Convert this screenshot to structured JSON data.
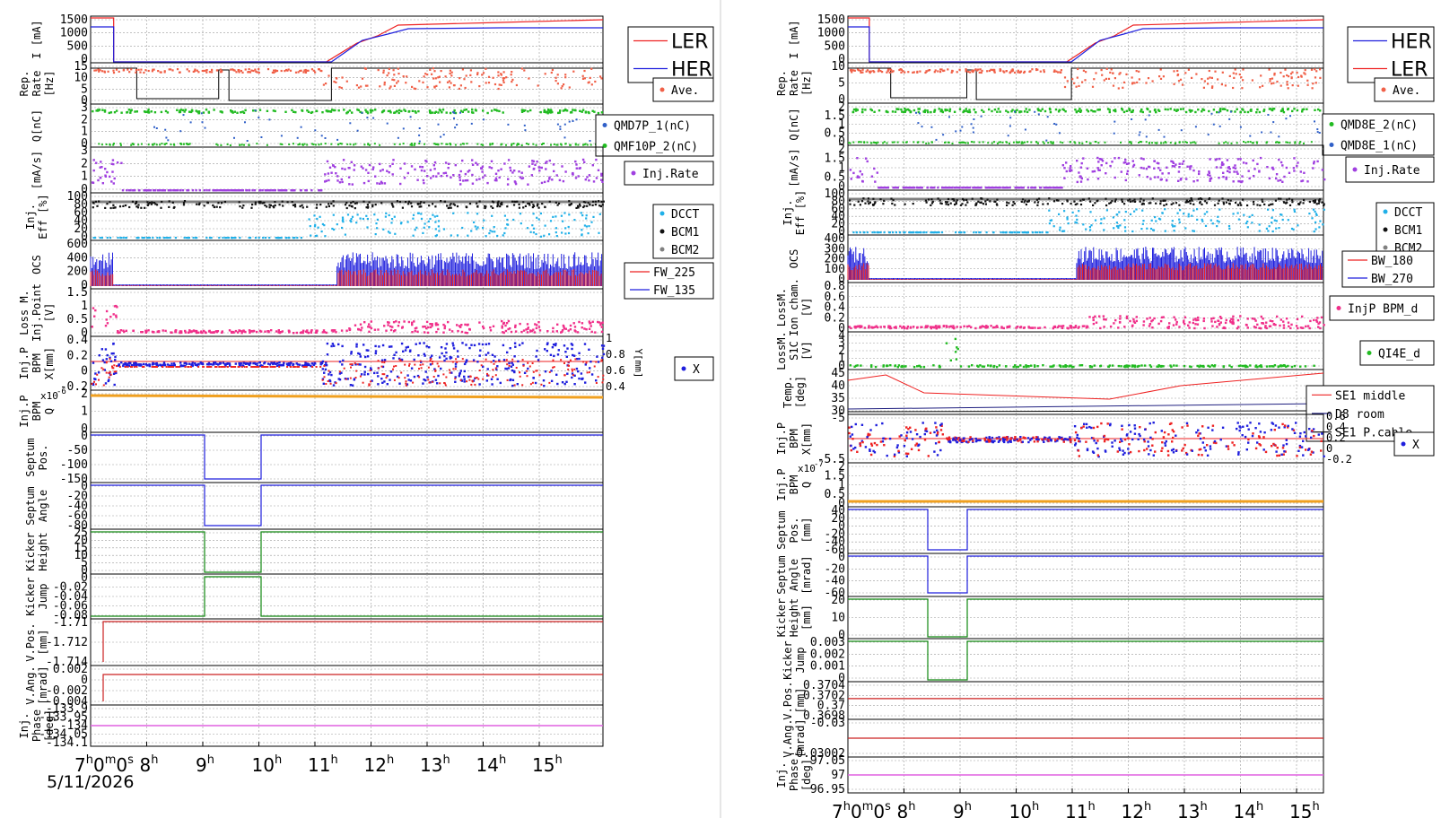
{
  "date_label": "5/11/2026",
  "x_ticks": [
    "7",
    "8",
    "9",
    "10",
    "11",
    "12",
    "13",
    "14",
    "15"
  ],
  "x_start_label_suffix": "m0s",
  "colors": {
    "her_blue": "#1f1fdd",
    "ler_red": "#ee2222",
    "rate_salmon": "#f06048",
    "green": "#22bb22",
    "blue_dot": "#3060c8",
    "purple": "#a040e0",
    "cyan": "#20b0e8",
    "black": "#111111",
    "gray": "#808080",
    "pink": "#f0308a",
    "orange": "#f0a020",
    "magenta": "#e060e0",
    "dark_green": "#118811",
    "crimson": "#cc2020",
    "navy": "#202080"
  },
  "chart_data": [
    {
      "name": "left",
      "type": "line",
      "x_range": [
        "7:00",
        "16:00"
      ],
      "panels": [
        {
          "ylabel": [
            "I [mA]"
          ],
          "ticks": [
            "1500",
            "1000",
            "500",
            "0"
          ],
          "legend": [
            "LER",
            "HER"
          ]
        },
        {
          "ylabel": [
            "Rep.",
            "Rate",
            "[Hz]"
          ],
          "ticks": [
            "15",
            "10",
            "5",
            "0"
          ],
          "legend": [
            "Ave."
          ]
        },
        {
          "ylabel": [
            "Q[nC]"
          ],
          "ticks": [
            "3",
            "2",
            "1",
            "0"
          ],
          "legend": [
            "QMD7P_1(nC)",
            "QMF10P_2(nC)"
          ]
        },
        {
          "ylabel": [
            "[mA/s]"
          ],
          "ticks": [
            "3",
            "2",
            "1",
            "0"
          ],
          "legend": [
            "Inj.Rate"
          ]
        },
        {
          "ylabel": [
            "Inj.",
            "Eff [%]"
          ],
          "ticks": [
            "100",
            "80",
            "60",
            "40",
            "20",
            "0"
          ],
          "legend": [
            "DCCT",
            "BCM1",
            "BCM2"
          ]
        },
        {
          "ylabel": [
            "OCS"
          ],
          "ticks": [
            "600",
            "400",
            "200",
            "0"
          ],
          "legend": [
            "FW_225",
            "FW_135"
          ]
        },
        {
          "ylabel": [
            "Loss M.",
            "Inj.Point",
            "[V]"
          ],
          "ticks": [
            "1.5",
            "1",
            "0.5",
            "0"
          ],
          "legend": []
        },
        {
          "ylabel": [
            "Inj.P",
            "BPM",
            "X[mm]"
          ],
          "ticks": [
            "0.4",
            "0.2",
            "0",
            "-0.2"
          ],
          "right_ticks": [
            "1",
            "0.8",
            "0.6",
            "0.4"
          ],
          "right_label": "Y[mm]",
          "legend": [
            "X"
          ]
        },
        {
          "ylabel": [
            "Inj.P",
            "BPM",
            "Q"
          ],
          "ticks": [
            "2",
            "1",
            "0"
          ],
          "exponent": "x10",
          "exponent_power": "-6",
          "legend": []
        },
        {
          "ylabel": [
            "Septum",
            "Pos."
          ],
          "ticks": [
            "0",
            "-50",
            "-100",
            "-150"
          ],
          "legend": []
        },
        {
          "ylabel": [
            "Septum",
            "Angle"
          ],
          "ticks": [
            "0",
            "-20",
            "-40",
            "-60",
            "-80"
          ],
          "legend": []
        },
        {
          "ylabel": [
            "Kicker",
            "Height"
          ],
          "ticks": [
            "25",
            "20",
            "15",
            "10",
            "5",
            "0"
          ],
          "legend": []
        },
        {
          "ylabel": [
            "Kicker",
            "Jump"
          ],
          "ticks": [
            "0",
            "-0.02",
            "-0.04",
            "-0.06",
            "-0.08"
          ],
          "legend": []
        },
        {
          "ylabel": [
            "V.Pos.",
            "[mm]"
          ],
          "ticks": [
            "-1.71",
            "-1.712",
            "-1.714"
          ],
          "legend": []
        },
        {
          "ylabel": [
            "V.Ang.",
            "[mrad]"
          ],
          "ticks": [
            "0.002",
            "0",
            "-0.002",
            "-0.004"
          ],
          "legend": []
        },
        {
          "ylabel": [
            "Inj.",
            "Phase",
            "[deg]"
          ],
          "ticks": [
            "-133.9",
            "-133.95",
            "-134",
            "-134.05",
            "-134.1"
          ],
          "legend": []
        }
      ]
    },
    {
      "name": "right",
      "type": "line",
      "x_range": [
        "7:00",
        "16:00"
      ],
      "panels": [
        {
          "ylabel": [
            "I [mA]"
          ],
          "ticks": [
            "1500",
            "1000",
            "500",
            "0"
          ],
          "legend": [
            "HER",
            "LER"
          ]
        },
        {
          "ylabel": [
            "Rep.",
            "Rate",
            "[Hz]"
          ],
          "ticks": [
            "10",
            "5",
            "0"
          ],
          "legend": [
            "Ave."
          ]
        },
        {
          "ylabel": [
            "Q[nC]"
          ],
          "ticks": [
            "2",
            "1.5",
            "1",
            "0.5",
            "0"
          ],
          "legend": [
            "QMD8E_2(nC)",
            "QMD8E_1(nC)"
          ]
        },
        {
          "ylabel": [
            "[mA/s]"
          ],
          "ticks": [
            "2",
            "1.5",
            "1",
            "0.5",
            "0"
          ],
          "legend": [
            "Inj.Rate"
          ]
        },
        {
          "ylabel": [
            "Inj.",
            "Eff [%]"
          ],
          "ticks": [
            "100",
            "80",
            "60",
            "40",
            "20",
            "0"
          ],
          "legend": [
            "DCCT",
            "BCM1",
            "BCM2"
          ]
        },
        {
          "ylabel": [
            "OCS"
          ],
          "ticks": [
            "400",
            "300",
            "200",
            "100",
            "0"
          ],
          "legend": [
            "BW_180",
            "BW_270"
          ]
        },
        {
          "ylabel": [
            "LossM.",
            "Ion cham.",
            "[V]"
          ],
          "ticks": [
            "0.8",
            "0.6",
            "0.4",
            "0.2",
            "0"
          ],
          "legend": [
            "InjP BPM_d"
          ]
        },
        {
          "ylabel": [
            "LossM.",
            "S1C",
            "[V]"
          ],
          "ticks": [
            "4",
            "3",
            "2",
            "1",
            "0"
          ],
          "legend": [
            "QI4E_d"
          ]
        },
        {
          "ylabel": [
            "Temp.",
            "[deg]"
          ],
          "ticks": [
            "45",
            "40",
            "35",
            "30"
          ],
          "legend": [
            "SE1 middle",
            "D8 room",
            "SE1 P.cable"
          ]
        },
        {
          "ylabel": [
            "Inj.P",
            "BPM",
            "X[mm]"
          ],
          "ticks": [
            "-5",
            "-5.5"
          ],
          "right_ticks": [
            "0.6",
            "0.4",
            "0.2",
            "0",
            "-0.2"
          ],
          "legend": [
            "X"
          ]
        },
        {
          "ylabel": [
            "Inj.P",
            "BPM",
            "Q"
          ],
          "ticks": [
            "2",
            "1.5",
            "1",
            "0.5",
            "0"
          ],
          "exponent": "x10",
          "exponent_power": "-7",
          "legend": []
        },
        {
          "ylabel": [
            "Septum",
            "Pos.",
            "[mm]"
          ],
          "ticks": [
            "40",
            "20",
            "0",
            "-20",
            "-40",
            "-60"
          ],
          "legend": []
        },
        {
          "ylabel": [
            "Septum",
            "Angle",
            "[mrad]"
          ],
          "ticks": [
            "0",
            "-20",
            "-40",
            "-60"
          ],
          "legend": []
        },
        {
          "ylabel": [
            "Kicker",
            "Height",
            "[mm]"
          ],
          "ticks": [
            "20",
            "10",
            "0"
          ],
          "legend": []
        },
        {
          "ylabel": [
            "Kicker",
            "Jump"
          ],
          "ticks": [
            "0.003",
            "0.002",
            "0.001",
            "0"
          ],
          "legend": []
        },
        {
          "ylabel": [
            "V.Pos.",
            "[mm]"
          ],
          "ticks": [
            "0.3704",
            "0.3702",
            "0.37",
            "0.3698"
          ],
          "legend": []
        },
        {
          "ylabel": [
            "V.Ang.",
            "[mrad]"
          ],
          "ticks": [
            "-0.03",
            "-0.03002"
          ],
          "legend": []
        },
        {
          "ylabel": [
            "Inj.",
            "Phase",
            "[deg]"
          ],
          "ticks": [
            "97.05",
            "97",
            "96.95"
          ],
          "legend": []
        }
      ]
    }
  ]
}
